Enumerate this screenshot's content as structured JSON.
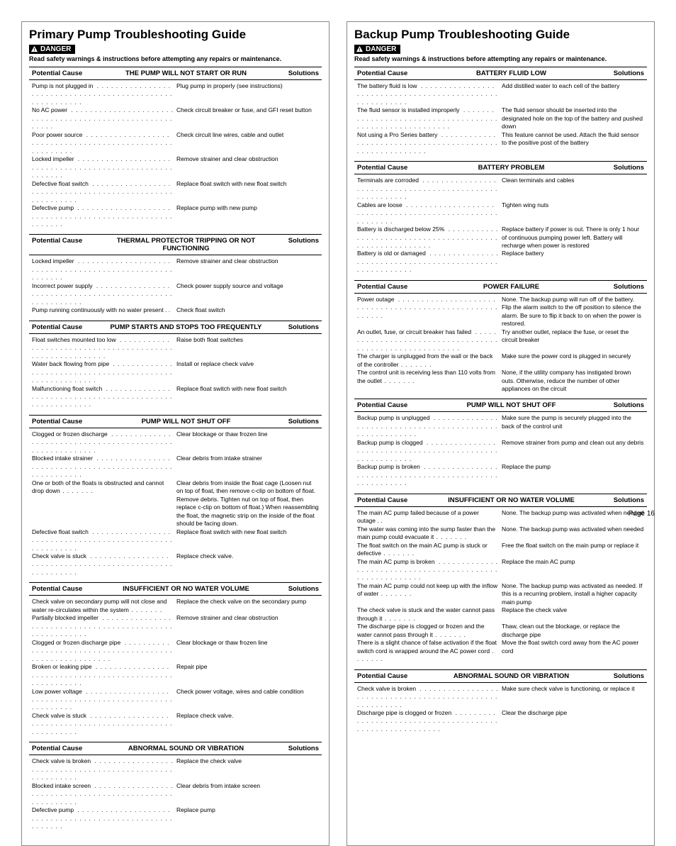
{
  "page_number_label": "Page 16",
  "danger_label": "DANGER",
  "safety_note": "Read safety warnings & instructions before attempting any repairs or maintenance.",
  "head_labels": {
    "cause": "Potential Cause",
    "solutions": "Solutions"
  },
  "columns": [
    {
      "title": "Primary Pump Troubleshooting Guide",
      "sections": [
        {
          "topic": "THE PUMP WILL NOT START OR RUN",
          "rows": [
            {
              "cause": "Pump is not plugged in",
              "solution": "Plug pump in properly (see instructions)"
            },
            {
              "cause": "No AC power",
              "solution": "Check circuit breaker or fuse, and GFI reset button"
            },
            {
              "cause": "Poor power source",
              "solution": "Check circuit line wires, cable and outlet"
            },
            {
              "cause": "Locked impeller",
              "solution": "Remove strainer and clear obstruction"
            },
            {
              "cause": "Defective float switch",
              "solution": "Replace float switch with new float switch"
            },
            {
              "cause": "Defective pump",
              "solution": "Replace pump with new pump"
            }
          ]
        },
        {
          "topic": "THERMAL PROTECTOR TRIPPING OR NOT FUNCTIONING",
          "rows": [
            {
              "cause": "Locked impeller",
              "solution": "Remove strainer and clear obstruction"
            },
            {
              "cause": "Incorrect power supply",
              "solution": "Check power supply source and voltage"
            },
            {
              "cause": "Pump running continuously with no water present",
              "solution": "Check float switch",
              "nolead": true
            }
          ]
        },
        {
          "topic": "PUMP STARTS AND STOPS TOO FREQUENTLY",
          "rows": [
            {
              "cause": "Float switches mounted too low",
              "solution": "Raise both float switches"
            },
            {
              "cause": "Water back flowing from pipe",
              "solution": "Install or replace check valve"
            },
            {
              "cause": "Malfunctioning float switch",
              "solution": "Replace float switch with new float switch"
            }
          ]
        },
        {
          "topic": "PUMP WILL NOT SHUT OFF",
          "rows": [
            {
              "cause": "Clogged or frozen discharge",
              "solution": "Clear blockage or thaw frozen line"
            },
            {
              "cause": "Blocked intake strainer",
              "solution": "Clear debris from intake strainer"
            },
            {
              "cause": "One or both of the floats is obstructed and cannot drop down",
              "solution": "Clear debris from inside the float cage (Loosen nut on top of float, then remove c-clip on bottom of float. Remove debris. Tighten nut on top of float, then replace c-clip on bottom of float.) When reassembling the float, the magnetic strip on the inside of the float should be facing down.",
              "multi": true
            },
            {
              "cause": "Defective float switch",
              "solution": "Replace float switch with new float switch"
            },
            {
              "cause": "Check valve is stuck",
              "solution": "Replace check valve."
            }
          ]
        },
        {
          "topic": "INSUFFICIENT OR NO WATER VOLUME",
          "rows": [
            {
              "cause": "Check valve on secondary pump will not close and water re-circulates within the system",
              "solution": "Replace the check valve on the secondary pump",
              "multi": true
            },
            {
              "cause": "Partially blocked impeller",
              "solution": "Remove strainer and clear obstruction"
            },
            {
              "cause": "Clogged or frozen discharge pipe",
              "solution": "Clear blockage or thaw frozen line"
            },
            {
              "cause": "Broken or leaking pipe",
              "solution": "Repair pipe"
            },
            {
              "cause": "Low power voltage",
              "solution": "Check power voltage, wires and cable condition"
            },
            {
              "cause": "Check valve is stuck",
              "solution": "Replace check valve."
            }
          ]
        },
        {
          "topic": "ABNORMAL SOUND OR VIBRATION",
          "rows": [
            {
              "cause": "Check valve is broken",
              "solution": "Replace the check valve"
            },
            {
              "cause": "Blocked intake screen",
              "solution": "Clear debris from intake screen"
            },
            {
              "cause": "Defective pump",
              "solution": "Replace pump"
            }
          ]
        }
      ]
    },
    {
      "title": "Backup Pump Troubleshooting Guide",
      "sections": [
        {
          "topic": "BATTERY FLUID LOW",
          "rows": [
            {
              "cause": "The battery fluid is low",
              "solution": "Add distilled water to each cell of the battery"
            },
            {
              "cause": "The fluid sensor is installed improperly",
              "solution": "The fluid sensor should be inserted into the designated hole on the top of the battery and pushed down"
            },
            {
              "cause": "Not using a Pro Series battery",
              "solution": "This feature cannot be used. Attach the fluid sensor to the positive post of the battery"
            }
          ]
        },
        {
          "topic": "BATTERY PROBLEM",
          "rows": [
            {
              "cause": "Terminals are corroded",
              "solution": "Clean terminals and cables"
            },
            {
              "cause": "Cables are loose",
              "solution": "Tighten wing nuts"
            },
            {
              "cause": "Battery is discharged below 25%",
              "solution": "Replace battery if power is out. There is only 1 hour of continuous pumping power left. Battery will recharge when power is restored"
            },
            {
              "cause": "Battery is old or damaged",
              "solution": "Replace battery"
            }
          ]
        },
        {
          "topic": "POWER FAILURE",
          "rows": [
            {
              "cause": "Power outage",
              "solution": "None. The backup pump will run off of the battery. Flip the alarm switch to the off position to silence the alarm. Be sure to flip it back to on when the power is restored."
            },
            {
              "cause": "An outlet, fuse, or circuit breaker has failed",
              "solution": "Try another outlet, replace the fuse, or reset the circuit breaker"
            },
            {
              "cause": "The charger is unplugged from the wall or the back of the controller",
              "solution": "Make sure the power cord is plugged in securely",
              "multi": true
            },
            {
              "cause": "The control unit is receiving less than 110 volts from the outlet",
              "solution": "None, if the utility company has instigated brown outs. Otherwise, reduce the number of other appliances on the circuit",
              "multi": true
            }
          ]
        },
        {
          "topic": "PUMP WILL NOT SHUT OFF",
          "rows": [
            {
              "cause": "Backup pump is unplugged",
              "solution": "Make sure the pump is securely plugged into the back of the control unit"
            },
            {
              "cause": "Backup pump is clogged",
              "solution": "Remove strainer from pump and clean out any debris"
            },
            {
              "cause": "Backup pump is broken",
              "solution": "Replace the pump"
            }
          ]
        },
        {
          "topic": "INSUFFICIENT OR NO WATER VOLUME",
          "rows": [
            {
              "cause": "The main AC pump failed because of a power outage",
              "solution": "None. The backup pump was activated when needed",
              "nolead": true
            },
            {
              "cause": "The water was coming into the sump faster than the main pump could evacuate it",
              "solution": "None. The backup pump was activated when needed",
              "multi": true
            },
            {
              "cause": "The float switch on the main AC pump is stuck or defective",
              "solution": "Free the float switch on the main pump or replace it",
              "multi": true
            },
            {
              "cause": "The main AC pump is broken",
              "solution": "Replace the main AC pump"
            },
            {
              "cause": "The main AC pump could not keep up with the inflow of water",
              "solution": "None. The backup pump was activated as needed. If this is a recurring problem, install a higher capacity main pump",
              "multi": true
            },
            {
              "cause": "The check valve is stuck and the water cannot pass through it",
              "solution": "Replace the check valve",
              "multi": true
            },
            {
              "cause": "The discharge pipe is clogged or frozen and the water cannot pass through it",
              "solution": "Thaw, clean out the blockage, or replace the discharge pipe",
              "multi": true
            },
            {
              "cause": "There is a slight chance of false activation if the float switch cord is wrapped around the AC power cord",
              "solution": "Move the float switch cord away from the AC power cord",
              "multi": true
            }
          ]
        },
        {
          "topic": "ABNORMAL SOUND OR VIBRATION",
          "rows": [
            {
              "cause": "Check valve is broken",
              "solution": "Make sure check valve is functioning, or replace it"
            },
            {
              "cause": "Discharge pipe is clogged or frozen",
              "solution": "Clear the discharge pipe"
            }
          ]
        }
      ]
    }
  ]
}
